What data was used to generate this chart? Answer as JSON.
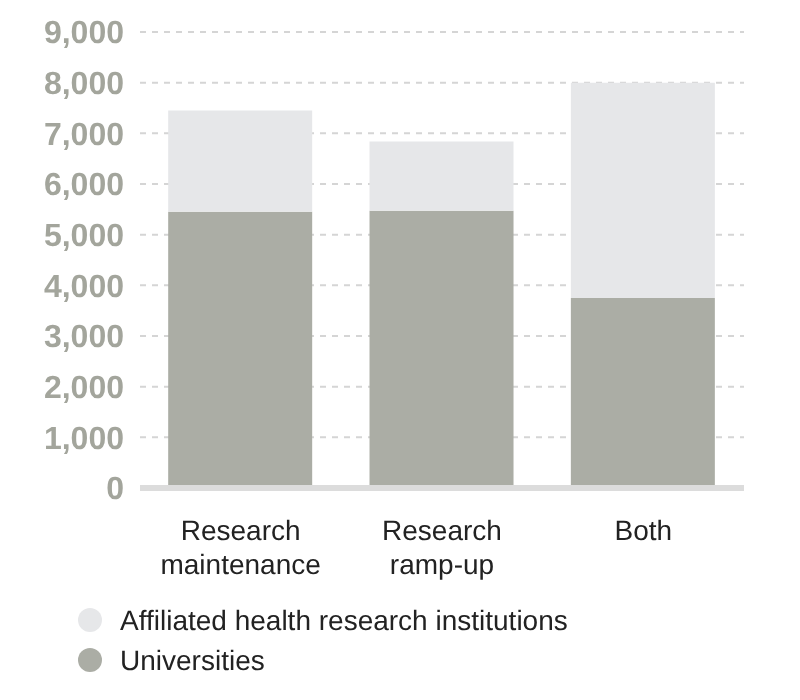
{
  "chart_data": {
    "type": "bar",
    "stacked": true,
    "categories": [
      "Research maintenance",
      "Research ramp-up",
      "Both"
    ],
    "series": [
      {
        "name": "Universities",
        "color": "#abada5",
        "values": [
          5450,
          5470,
          3750
        ]
      },
      {
        "name": "Affiliated health research institutions",
        "color": "#e6e7e9",
        "values": [
          2000,
          1370,
          4250
        ]
      }
    ],
    "ylim": [
      0,
      9000
    ],
    "yticks": [
      {
        "value": 0,
        "label": "0"
      },
      {
        "value": 1000,
        "label": "1,000"
      },
      {
        "value": 2000,
        "label": "2,000"
      },
      {
        "value": 3000,
        "label": "3,000"
      },
      {
        "value": 4000,
        "label": "4,000"
      },
      {
        "value": 5000,
        "label": "5,000"
      },
      {
        "value": 6000,
        "label": "6,000"
      },
      {
        "value": 7000,
        "label": "7,000"
      },
      {
        "value": 8000,
        "label": "8,000"
      },
      {
        "value": 9000,
        "label": "9,000"
      }
    ],
    "grid": "y",
    "legend": "bottom",
    "marker": "circle"
  }
}
